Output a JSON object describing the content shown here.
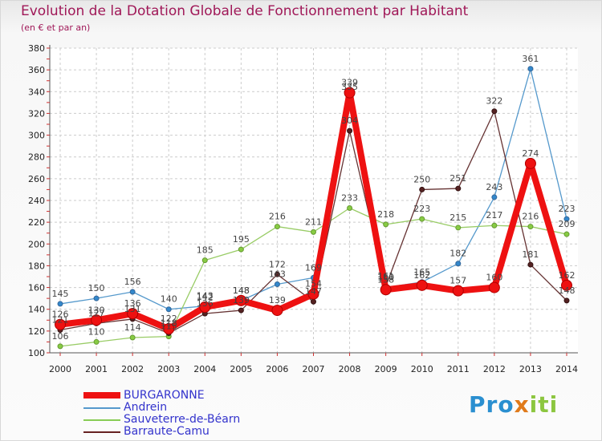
{
  "title": "Evolution de la Dotation Globale de Fonctionnement par Habitant",
  "subtitle": "(en € et par an)",
  "logo": {
    "p1": "Pro",
    "p2": "x",
    "p3": "iti"
  },
  "colors": {
    "BURGARONNE": "#ee1111",
    "Andrein": "#5599cc",
    "Sauveterre-de-Béarn": "#88cc55",
    "Barraute-Camu": "#662222",
    "grid": "#cccccc",
    "text": "#222222"
  },
  "chart_data": {
    "type": "line",
    "title": "Evolution de la Dotation Globale de Fonctionnement par Habitant",
    "subtitle": "(en € et par an)",
    "categories": [
      "2000",
      "2001",
      "2002",
      "2003",
      "2004",
      "2005",
      "2006",
      "2007",
      "2008",
      "2009",
      "2010",
      "2011",
      "2012",
      "2013",
      "2014"
    ],
    "ylim": [
      100,
      380
    ],
    "yticks": [
      100,
      120,
      140,
      160,
      180,
      200,
      220,
      240,
      260,
      280,
      300,
      320,
      340,
      360,
      380
    ],
    "grid": true,
    "legend_position": "bottom-left",
    "series": [
      {
        "name": "BURGARONNE",
        "values": [
          126,
          130,
          136,
          122,
          142,
          148,
          139,
          154,
          339,
          158,
          162,
          157,
          160,
          274,
          162
        ]
      },
      {
        "name": "Andrein",
        "values": [
          145,
          150,
          156,
          140,
          143,
          148,
          163,
          169,
          335,
          160,
          165,
          182,
          243,
          361,
          223
        ]
      },
      {
        "name": "Sauveterre-de-Béarn",
        "values": [
          106,
          110,
          114,
          115,
          185,
          195,
          216,
          211,
          233,
          218,
          223,
          215,
          217,
          216,
          209
        ]
      },
      {
        "name": "Barraute-Camu",
        "values": [
          121,
          127,
          131,
          118,
          136,
          139,
          172,
          147,
          304,
          161,
          250,
          251,
          322,
          181,
          148
        ]
      }
    ]
  }
}
